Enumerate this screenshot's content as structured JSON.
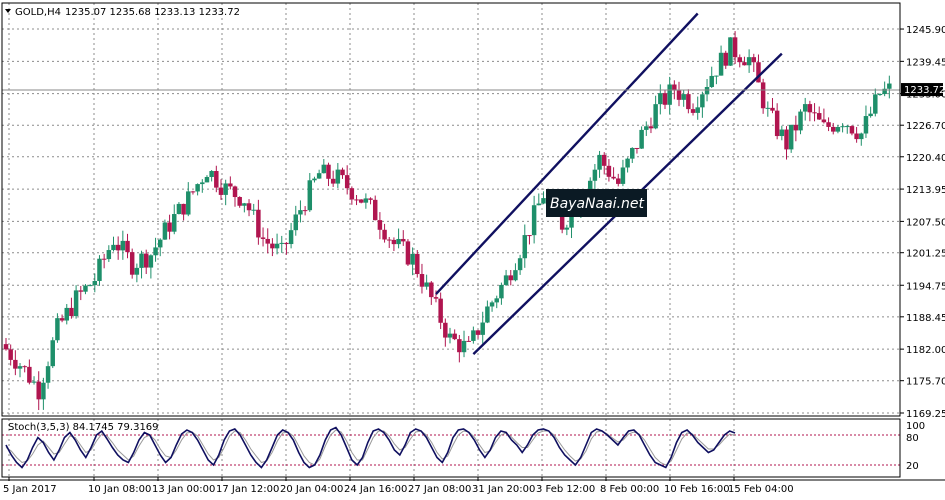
{
  "chart_data": [
    {
      "type": "candlestick",
      "symbol_header": "GOLD,H4",
      "ohlc_header": "1235.07 1235.68 1233.13 1233.72",
      "current_price": 1233.72,
      "ylim": [
        1169.25,
        1249.5
      ],
      "yticks": [
        "1245.90",
        "1239.45",
        "1233.00",
        "1226.70",
        "1220.40",
        "1213.95",
        "1207.50",
        "1201.25",
        "1194.75",
        "1188.45",
        "1182.00",
        "1175.70",
        "1169.25"
      ],
      "ytick_values": [
        1245.9,
        1239.45,
        1233.0,
        1226.7,
        1220.4,
        1213.95,
        1207.5,
        1201.25,
        1194.75,
        1188.45,
        1182.0,
        1175.7,
        1169.25
      ],
      "xticks": [
        "5 Jan 2017",
        "10 Jan 08:00",
        "13 Jan 00:00",
        "17 Jan 12:00",
        "20 Jan 04:00",
        "24 Jan 16:00",
        "27 Jan 08:00",
        "31 Jan 20:00",
        "3 Feb 12:00",
        "8 Feb 00:00",
        "10 Feb 16:00",
        "15 Feb 04:00"
      ],
      "close_path": [
        [
          0,
          1183
        ],
        [
          4,
          1179
        ],
        [
          8,
          1174
        ],
        [
          12,
          1186
        ],
        [
          16,
          1192
        ],
        [
          20,
          1196
        ],
        [
          24,
          1204
        ],
        [
          28,
          1199
        ],
        [
          32,
          1201
        ],
        [
          36,
          1207
        ],
        [
          40,
          1212
        ],
        [
          44,
          1218
        ],
        [
          48,
          1214
        ],
        [
          52,
          1212
        ],
        [
          56,
          1204
        ],
        [
          60,
          1201
        ],
        [
          64,
          1210
        ],
        [
          68,
          1217
        ],
        [
          72,
          1216
        ],
        [
          76,
          1213
        ],
        [
          80,
          1209
        ],
        [
          84,
          1203
        ],
        [
          88,
          1200
        ],
        [
          92,
          1192
        ],
        [
          96,
          1184
        ],
        [
          100,
          1182
        ],
        [
          104,
          1190
        ],
        [
          108,
          1196
        ],
        [
          112,
          1204
        ],
        [
          116,
          1213
        ],
        [
          120,
          1207
        ],
        [
          124,
          1212
        ],
        [
          128,
          1220
        ],
        [
          132,
          1215
        ],
        [
          136,
          1223
        ],
        [
          140,
          1230
        ],
        [
          144,
          1234
        ],
        [
          148,
          1231
        ],
        [
          152,
          1237
        ],
        [
          156,
          1242
        ],
        [
          160,
          1240
        ],
        [
          164,
          1229
        ],
        [
          168,
          1223
        ],
        [
          172,
          1230
        ],
        [
          176,
          1226
        ],
        [
          180,
          1228
        ],
        [
          184,
          1225
        ],
        [
          188,
          1233
        ],
        [
          190,
          1233.72
        ]
      ],
      "n_bars": 190,
      "channel": {
        "upper": [
          [
            92,
            1193
          ],
          [
            148,
            1249
          ]
        ],
        "lower": [
          [
            100,
            1181
          ],
          [
            166,
            1241
          ]
        ]
      },
      "watermark": "BayaNaai.net"
    },
    {
      "type": "line",
      "title": "Stoch(3,5,3) 84.1745 79.3169",
      "levels": [
        20,
        80
      ],
      "level_labels": [
        "20",
        "80",
        "100"
      ],
      "ylim": [
        0,
        100
      ],
      "series": [
        {
          "values": [
            60,
            40,
            25,
            15,
            30,
            55,
            75,
            65,
            45,
            30,
            50,
            75,
            85,
            70,
            50,
            35,
            55,
            80,
            88,
            72,
            55,
            40,
            30,
            25,
            45,
            70,
            85,
            80,
            60,
            40,
            25,
            35,
            60,
            82,
            90,
            85,
            70,
            50,
            30,
            20,
            40,
            70,
            88,
            92,
            80,
            60,
            40,
            25,
            15,
            30,
            55,
            80,
            90,
            85,
            70,
            45,
            25,
            15,
            20,
            40,
            70,
            90,
            95,
            80,
            55,
            30,
            20,
            35,
            65,
            88,
            92,
            85,
            70,
            50,
            40,
            60,
            85,
            92,
            88,
            75,
            55,
            35,
            25,
            45,
            75,
            90,
            92,
            85,
            70,
            50,
            35,
            50,
            75,
            88,
            85,
            70,
            60,
            45,
            60,
            80,
            90,
            92,
            88,
            75,
            55,
            40,
            30,
            20,
            35,
            60,
            85,
            92,
            88,
            80,
            70,
            60,
            75,
            88,
            90,
            80,
            60,
            40,
            25,
            20,
            15,
            35,
            65,
            85,
            90,
            80,
            65,
            55,
            45,
            50,
            65,
            80,
            88,
            84
          ]
        },
        {
          "values": [
            55,
            48,
            35,
            25,
            28,
            42,
            60,
            68,
            55,
            42,
            45,
            62,
            78,
            75,
            60,
            45,
            50,
            68,
            82,
            78,
            65,
            50,
            40,
            30,
            38,
            58,
            75,
            80,
            70,
            52,
            38,
            35,
            50,
            70,
            84,
            86,
            78,
            60,
            42,
            30,
            35,
            55,
            78,
            88,
            85,
            70,
            52,
            38,
            25,
            28,
            45,
            68,
            84,
            86,
            78,
            58,
            38,
            25,
            20,
            32,
            58,
            80,
            90,
            86,
            68,
            45,
            30,
            30,
            52,
            75,
            88,
            88,
            78,
            62,
            50,
            55,
            72,
            86,
            88,
            80,
            65,
            45,
            32,
            38,
            60,
            80,
            88,
            86,
            76,
            60,
            45,
            48,
            65,
            80,
            84,
            76,
            65,
            55,
            55,
            70,
            84,
            88,
            88,
            80,
            65,
            50,
            38,
            28,
            32,
            48,
            72,
            86,
            88,
            82,
            74,
            66,
            70,
            82,
            86,
            82,
            70,
            52,
            35,
            25,
            20,
            28,
            50,
            72,
            84,
            82,
            72,
            62,
            52,
            52,
            60,
            72,
            82,
            79
          ]
        }
      ]
    }
  ]
}
